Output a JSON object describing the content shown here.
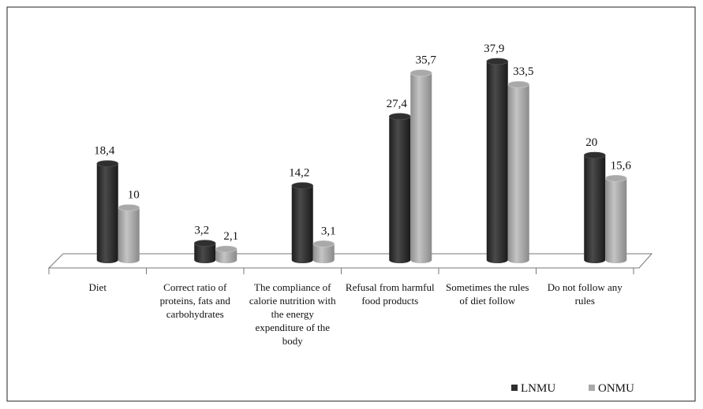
{
  "chart_data": {
    "type": "bar",
    "categories": [
      "Diet",
      "Correct ratio of proteins, fats and carbohydrates",
      "The compliance of calorie nutrition with the energy expenditure of the body",
      "Refusal from harmful food products",
      "Sometimes the rules of diet follow",
      "Do not follow any rules"
    ],
    "series": [
      {
        "name": "LNMU",
        "color": "#2f2f2f",
        "values": [
          18.4,
          3.2,
          14.2,
          27.4,
          37.9,
          20
        ],
        "value_labels": [
          "18,4",
          "3,2",
          "14,2",
          "27,4",
          "37,9",
          "20"
        ]
      },
      {
        "name": "ONMU",
        "color": "#a9a9a9",
        "values": [
          10,
          2.1,
          3.1,
          35.7,
          33.5,
          15.6
        ],
        "value_labels": [
          "10",
          "2,1",
          "3,1",
          "35,7",
          "33,5",
          "15,6"
        ]
      }
    ],
    "legend": "bottom-right"
  }
}
